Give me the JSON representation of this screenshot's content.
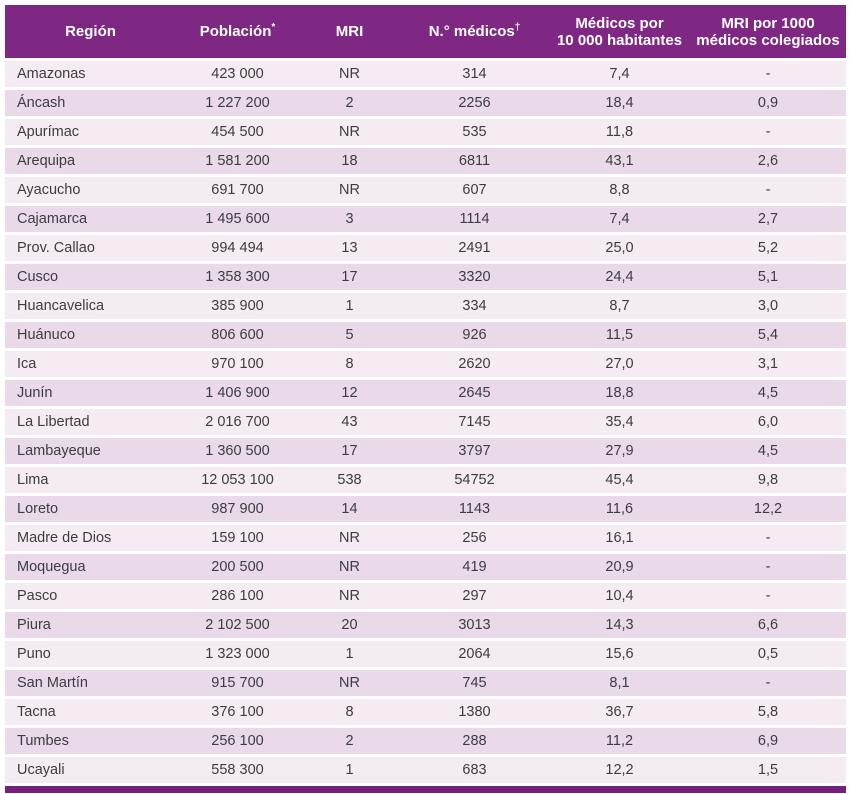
{
  "table": {
    "columns": [
      {
        "label": "Región",
        "sup": ""
      },
      {
        "label": "Población",
        "sup": "*"
      },
      {
        "label": "MRI",
        "sup": ""
      },
      {
        "label": "N.° médicos",
        "sup": "†"
      },
      {
        "label": "Médicos por 10 000 habitantes",
        "sup": ""
      },
      {
        "label": "MRI por 1000 médicos colegiados",
        "sup": ""
      }
    ],
    "rows": [
      [
        "Amazonas",
        "423 000",
        "NR",
        "314",
        "7,4",
        "-"
      ],
      [
        "Áncash",
        "1 227 200",
        "2",
        "2256",
        "18,4",
        "0,9"
      ],
      [
        "Apurímac",
        "454 500",
        "NR",
        "535",
        "11,8",
        "-"
      ],
      [
        "Arequipa",
        "1 581 200",
        "18",
        "6811",
        "43,1",
        "2,6"
      ],
      [
        "Ayacucho",
        "691 700",
        "NR",
        "607",
        "8,8",
        "-"
      ],
      [
        "Cajamarca",
        "1 495 600",
        "3",
        "1114",
        "7,4",
        "2,7"
      ],
      [
        "Prov. Callao",
        "994 494",
        "13",
        "2491",
        "25,0",
        "5,2"
      ],
      [
        "Cusco",
        "1 358 300",
        "17",
        "3320",
        "24,4",
        "5,1"
      ],
      [
        "Huancavelica",
        "385 900",
        "1",
        "334",
        "8,7",
        "3,0"
      ],
      [
        "Huánuco",
        "806 600",
        "5",
        "926",
        "11,5",
        "5,4"
      ],
      [
        "Ica",
        "970 100",
        "8",
        "2620",
        "27,0",
        "3,1"
      ],
      [
        "Junín",
        "1 406 900",
        "12",
        "2645",
        "18,8",
        "4,5"
      ],
      [
        "La Libertad",
        "2 016 700",
        "43",
        "7145",
        "35,4",
        "6,0"
      ],
      [
        "Lambayeque",
        "1 360 500",
        "17",
        "3797",
        "27,9",
        "4,5"
      ],
      [
        "Lima",
        "12 053 100",
        "538",
        "54752",
        "45,4",
        "9,8"
      ],
      [
        "Loreto",
        "987 900",
        "14",
        "1143",
        "11,6",
        "12,2"
      ],
      [
        "Madre de Dios",
        "159 100",
        "NR",
        "256",
        "16,1",
        "-"
      ],
      [
        "Moquegua",
        "200 500",
        "NR",
        "419",
        "20,9",
        "-"
      ],
      [
        "Pasco",
        "286 100",
        "NR",
        "297",
        "10,4",
        "-"
      ],
      [
        "Piura",
        "2 102 500",
        "20",
        "3013",
        "14,3",
        "6,6"
      ],
      [
        "Puno",
        "1 323 000",
        "1",
        "2064",
        "15,6",
        "0,5"
      ],
      [
        "San Martín",
        "915 700",
        "NR",
        "745",
        "8,1",
        "-"
      ],
      [
        "Tacna",
        "376 100",
        "8",
        "1380",
        "36,7",
        "5,8"
      ],
      [
        "Tumbes",
        "256 100",
        "2",
        "288",
        "11,2",
        "6,9"
      ],
      [
        "Ucayali",
        "558 300",
        "1",
        "683",
        "12,2",
        "1,5"
      ]
    ]
  },
  "colors": {
    "header_bg": "#7E2883",
    "header_text": "#FFFFFF",
    "row_light": "#F4EBF3",
    "row_dark": "#E9D9E9",
    "bottom_bar": "#75217B",
    "body_text": "#3D3D3D"
  }
}
